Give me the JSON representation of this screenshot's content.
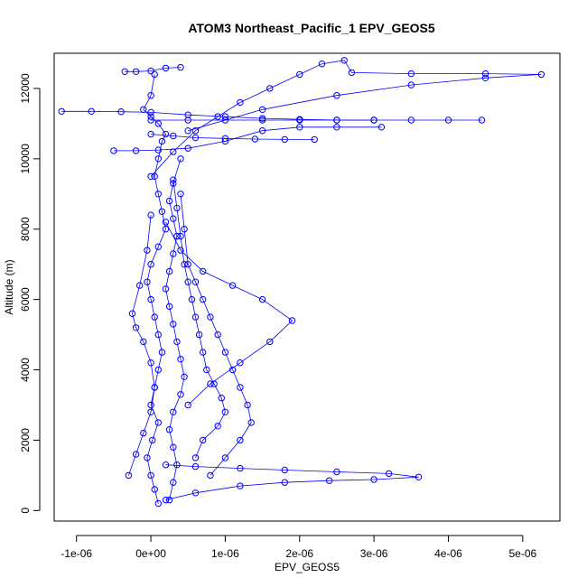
{
  "chart_data": {
    "type": "scatter",
    "title": "ATOM3 Northeast_Pacific_1 EPV_GEOS5",
    "xlabel": "EPV_GEOS5",
    "ylabel": "Altitude (m)",
    "xlim": [
      -1.3e-06,
      5.5e-06
    ],
    "ylim": [
      -300,
      13000
    ],
    "x_ticks": [
      -1e-06,
      0,
      1e-06,
      2e-06,
      3e-06,
      4e-06,
      5e-06
    ],
    "x_tick_labels": [
      "-1e-06",
      "0e+00",
      "1e-06",
      "2e-06",
      "3e-06",
      "4e-06",
      "5e-06"
    ],
    "y_ticks": [
      0,
      2000,
      4000,
      6000,
      8000,
      10000,
      12000
    ],
    "y_tick_labels": [
      "0",
      "2000",
      "4000",
      "6000",
      "8000",
      "10000",
      "12000"
    ],
    "style": {
      "color": "#0000ff",
      "marker": "open-circle",
      "connected": true,
      "grid": false,
      "legend": "none"
    },
    "series": [
      {
        "x": [
          1e-07,
          5e-08,
          0.0,
          -5e-08,
          2e-08,
          1e-07,
          0.0,
          5e-08,
          1e-07,
          1.5e-07,
          1e-07,
          5e-08,
          0.0,
          -5e-08,
          0.0,
          1e-07,
          2e-07,
          1.5e-07,
          1e-07,
          5e-08,
          1e-07,
          1.5e-07,
          2e-07,
          1e-07,
          0.0,
          -1e-07,
          0.0,
          5e-08
        ],
        "y": [
          200,
          600,
          1000,
          1500,
          2000,
          2500,
          3000,
          3500,
          4000,
          4500,
          5000,
          5500,
          6000,
          6500,
          7000,
          7500,
          8000,
          8500,
          9000,
          9500,
          10000,
          10500,
          10700,
          11000,
          11200,
          11400,
          11800,
          12400
        ]
      },
      {
        "x": [
          2.5e-07,
          3e-07,
          3.5e-07,
          3e-07,
          2.5e-07,
          3e-07,
          4e-07,
          4.5e-07,
          4e-07,
          3.5e-07,
          3e-07,
          2.5e-07,
          2e-07,
          2.5e-07,
          3e-07,
          3.5e-07,
          3e-07,
          2.5e-07,
          3e-07,
          4e-07
        ],
        "y": [
          300,
          800,
          1300,
          1800,
          2300,
          2800,
          3300,
          3800,
          4300,
          4800,
          5300,
          5800,
          6300,
          6800,
          7300,
          7800,
          8300,
          8800,
          9300,
          10000
        ]
      },
      {
        "x": [
          6e-07,
          7e-07,
          9e-07,
          1e-06,
          9.5e-07,
          8.5e-07,
          7.5e-07,
          7e-07,
          6.5e-07,
          6e-07,
          5.5e-07,
          5e-07,
          4.5e-07,
          4e-07,
          3.5e-07,
          3e-07
        ],
        "y": [
          1500,
          2000,
          2400,
          2800,
          3200,
          3600,
          4000,
          4500,
          5000,
          5500,
          6000,
          6500,
          7000,
          7800,
          8600,
          9400
        ]
      },
      {
        "x": [
          8e-07,
          1e-06,
          1.2e-06,
          1.35e-06,
          1.3e-06,
          1.2e-06,
          1.1e-06,
          1e-06,
          9e-07,
          8e-07,
          7e-07,
          6e-07,
          5e-07,
          4.5e-07,
          4e-07
        ],
        "y": [
          1000,
          1500,
          2000,
          2500,
          3000,
          3500,
          4000,
          4500,
          5000,
          5500,
          6000,
          6500,
          7000,
          8000,
          9000
        ]
      },
      {
        "x": [
          5e-07,
          8e-07,
          1.2e-06,
          1.6e-06,
          1.9e-06,
          1.5e-06,
          1.1e-06,
          7e-07,
          4e-07,
          2e-07
        ],
        "y": [
          3000,
          3600,
          4200,
          4800,
          5400,
          6000,
          6400,
          6800,
          7400,
          8200
        ]
      },
      {
        "x": [
          -3e-07,
          -2e-07,
          -1e-07,
          0.0,
          5e-08,
          0.0,
          -1e-07,
          -2e-07,
          -2.5e-07,
          -1.5e-07,
          -5e-08,
          0.0
        ],
        "y": [
          1000,
          1600,
          2200,
          2800,
          3500,
          4200,
          4800,
          5200,
          5600,
          6400,
          7400,
          8400
        ]
      },
      {
        "x": [
          2e-07,
          6e-07,
          1.2e-06,
          1.8e-06,
          2.4e-06,
          3e-06,
          3.6e-06,
          3.2e-06,
          2.5e-06,
          1.8e-06,
          1.2e-06,
          6e-07,
          2e-07
        ],
        "y": [
          300,
          500,
          700,
          800,
          850,
          880,
          950,
          1050,
          1100,
          1150,
          1200,
          1250,
          1300
        ]
      },
      {
        "x": [
          0.0,
          3e-07,
          6e-07,
          9e-07,
          1.2e-06,
          1.6e-06,
          2e-06,
          2.3e-06,
          2.6e-06,
          2.7e-06,
          3.5e-06,
          4.5e-06,
          5.25e-06,
          4.5e-06,
          3.5e-06,
          2.5e-06,
          1.5e-06,
          5e-07
        ],
        "y": [
          9500,
          10200,
          10800,
          11200,
          11600,
          12000,
          12400,
          12700,
          12800,
          12450,
          12420,
          12420,
          12400,
          12300,
          12100,
          11800,
          11400,
          10800
        ]
      },
      {
        "x": [
          -1.2e-06,
          -8e-07,
          -4e-07,
          0.0,
          5e-07,
          1e-06,
          1.5e-06,
          2e-06,
          2.5e-06,
          3e-06
        ],
        "y": [
          11350,
          11350,
          11340,
          11320,
          11250,
          11200,
          11150,
          11120,
          11100,
          11100
        ]
      },
      {
        "x": [
          0.0,
          5e-07,
          1e-06,
          1.5e-06,
          2e-06,
          2.5e-06,
          3e-06,
          3.5e-06,
          4e-06,
          4.45e-06
        ],
        "y": [
          11100,
          11100,
          11100,
          11100,
          11100,
          11100,
          11100,
          11100,
          11100,
          11100
        ]
      },
      {
        "x": [
          -5e-07,
          -2e-07,
          1e-07,
          5e-07,
          1e-06,
          1.5e-06,
          2e-06,
          2.5e-06,
          3.1e-06
        ],
        "y": [
          10230,
          10230,
          10250,
          10300,
          10500,
          10800,
          10900,
          10900,
          10900
        ]
      },
      {
        "x": [
          0.0,
          3e-07,
          6e-07,
          1e-06,
          1.4e-06,
          1.8e-06,
          2.2e-06
        ],
        "y": [
          10700,
          10650,
          10600,
          10580,
          10560,
          10550,
          10550
        ]
      },
      {
        "x": [
          -3.5e-07,
          -2e-07,
          0.0,
          2e-07,
          4e-07
        ],
        "y": [
          12480,
          12480,
          12500,
          12580,
          12600
        ]
      }
    ]
  }
}
